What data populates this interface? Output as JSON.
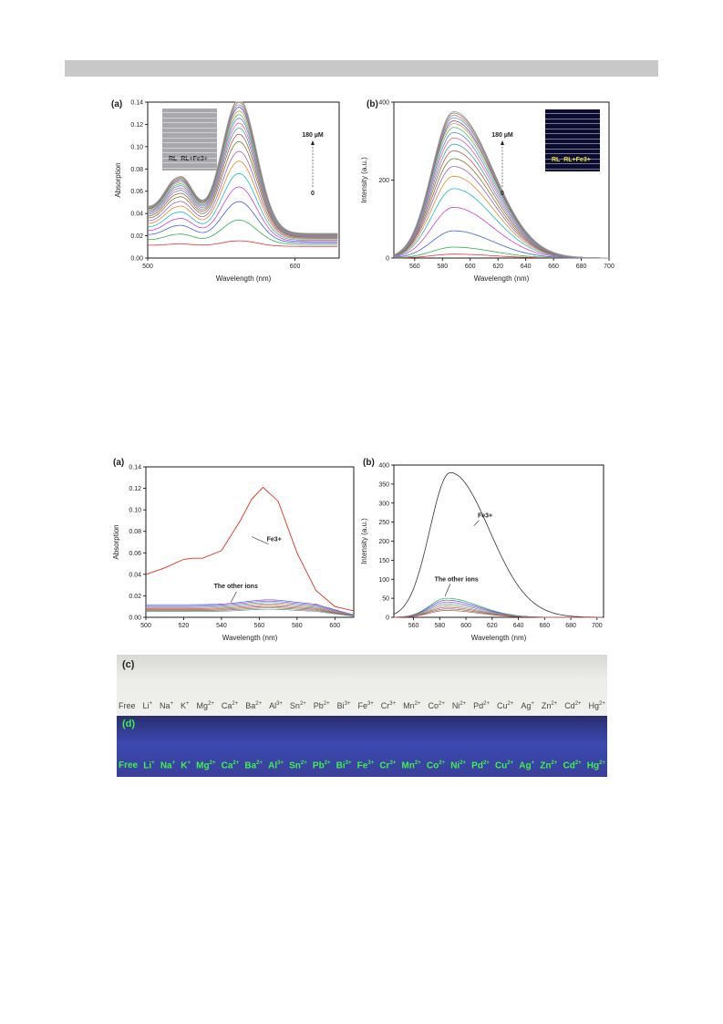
{
  "chart_data": [
    {
      "type": "line",
      "panel_label": "(a)",
      "xlabel": "Wavelength (nm)",
      "ylabel": "Absorption",
      "xlim": [
        500,
        630
      ],
      "ylim": [
        0,
        0.14
      ],
      "xticks": [
        500,
        600
      ],
      "yticks": [
        0.0,
        0.02,
        0.04,
        0.06,
        0.08,
        0.1,
        0.12,
        0.14
      ],
      "annotation_top": "180 µM",
      "annotation_bottom": "0",
      "inset_labels": [
        "RL",
        "RL+Fe3+"
      ],
      "peak_x": 562,
      "series_peaks": [
        0.005,
        0.022,
        0.037,
        0.049,
        0.06,
        0.07,
        0.078,
        0.086,
        0.092,
        0.097,
        0.101,
        0.105,
        0.108,
        0.111,
        0.114,
        0.116,
        0.118,
        0.12,
        0.121
      ]
    },
    {
      "type": "line",
      "panel_label": "(b)",
      "xlabel": "Wavelength (nm)",
      "ylabel": "Intensity (a.u.)",
      "xlim": [
        545,
        700
      ],
      "ylim": [
        0,
        400
      ],
      "xticks": [
        560,
        580,
        600,
        620,
        640,
        660,
        680,
        700
      ],
      "yticks": [
        0,
        200,
        400
      ],
      "annotation_top": "180 µM",
      "annotation_bottom": "0",
      "inset_labels": [
        "RL",
        "RL+Fe3+"
      ],
      "peak_x": 588,
      "series_peaks": [
        10,
        28,
        70,
        130,
        178,
        210,
        235,
        255,
        275,
        292,
        308,
        322,
        335,
        345,
        352,
        360,
        366,
        372,
        376
      ]
    },
    {
      "type": "line",
      "panel_label": "(a)",
      "xlabel": "Wavelength (nm)",
      "ylabel": "Absorption",
      "xlim": [
        500,
        610
      ],
      "ylim": [
        0,
        0.14
      ],
      "xticks": [
        500,
        520,
        540,
        560,
        580,
        600
      ],
      "yticks": [
        0.0,
        0.02,
        0.04,
        0.06,
        0.08,
        0.1,
        0.12,
        0.14
      ],
      "annotations": [
        "Fe3+",
        "The other ions"
      ],
      "fe_series": {
        "x": [
          500,
          510,
          520,
          525,
          530,
          540,
          550,
          556,
          562,
          570,
          580,
          590,
          600,
          610
        ],
        "y": [
          0.04,
          0.046,
          0.054,
          0.055,
          0.055,
          0.062,
          0.09,
          0.11,
          0.121,
          0.108,
          0.06,
          0.025,
          0.01,
          0.006
        ]
      },
      "other_series_levels": [
        0.013,
        0.012,
        0.011,
        0.01,
        0.009,
        0.008,
        0.007,
        0.006
      ]
    },
    {
      "type": "line",
      "panel_label": "(b)",
      "xlabel": "Wavelength (nm)",
      "ylabel": "Intensity (a.u.)",
      "xlim": [
        545,
        705
      ],
      "ylim": [
        0,
        400
      ],
      "xticks": [
        560,
        580,
        600,
        620,
        640,
        660,
        680,
        700
      ],
      "yticks": [
        0,
        50,
        100,
        150,
        200,
        250,
        300,
        350,
        400
      ],
      "annotations": [
        "Fe3+",
        "The other ions"
      ],
      "fe_peak": 380,
      "fe_peak_x": 588,
      "other_series_peaks": [
        50,
        45,
        40,
        35,
        30,
        26,
        22,
        18
      ]
    }
  ],
  "photos": {
    "c_label": "(c)",
    "d_label": "(d)",
    "ions": [
      {
        "base": "Free",
        "charge": ""
      },
      {
        "base": "Li",
        "charge": "+"
      },
      {
        "base": "Na",
        "charge": "+"
      },
      {
        "base": "K",
        "charge": "+"
      },
      {
        "base": "Mg",
        "charge": "2+"
      },
      {
        "base": "Ca",
        "charge": "2+"
      },
      {
        "base": "Ba",
        "charge": "2+"
      },
      {
        "base": "Al",
        "charge": "3+"
      },
      {
        "base": "Sn",
        "charge": "2+"
      },
      {
        "base": "Pb",
        "charge": "2+"
      },
      {
        "base": "Bi",
        "charge": "3+"
      },
      {
        "base": "Fe",
        "charge": "3+"
      },
      {
        "base": "Cr",
        "charge": "3+"
      },
      {
        "base": "Mn",
        "charge": "2+"
      },
      {
        "base": "Co",
        "charge": "2+"
      },
      {
        "base": "Ni",
        "charge": "2+"
      },
      {
        "base": "Pd",
        "charge": "2+"
      },
      {
        "base": "Cu",
        "charge": "2+"
      },
      {
        "base": "Ag",
        "charge": "+"
      },
      {
        "base": "Zn",
        "charge": "2+"
      },
      {
        "base": "Cd",
        "charge": "2+"
      },
      {
        "base": "Hg",
        "charge": "2+"
      }
    ]
  },
  "colors": {
    "palette": [
      "#e6323a",
      "#2bb24a",
      "#3a5fe0",
      "#d040d0",
      "#20b8c8",
      "#e08a20",
      "#9a60c0",
      "#7a7a2a",
      "#c05050",
      "#40a0a0",
      "#e060a0",
      "#6080f0",
      "#50c070",
      "#c0a040",
      "#8040a0",
      "#50a0e0",
      "#d07030",
      "#708090",
      "#a0a0a0"
    ],
    "fe_line": "#e0301e",
    "fe_line_b": "#333333"
  }
}
